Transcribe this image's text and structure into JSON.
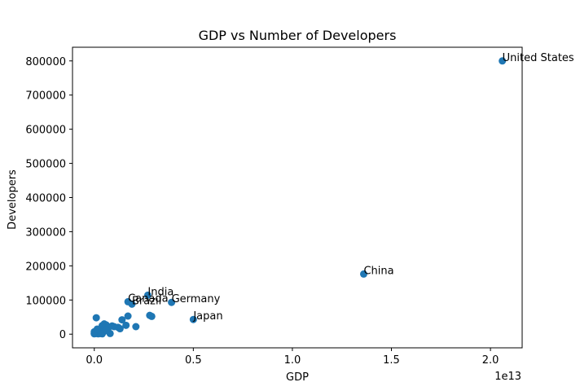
{
  "chart_data": {
    "type": "scatter",
    "title": "GDP vs Number of Developers",
    "xlabel": "GDP",
    "ylabel": "Developers",
    "x_offset_text": "1e13",
    "xlim": [
      -1100000000000.0,
      21600000000000.0
    ],
    "ylim": [
      -40000,
      840000
    ],
    "x_ticks": [
      0,
      5000000000000.0,
      10000000000000.0,
      15000000000000.0,
      20000000000000.0
    ],
    "x_tick_labels": [
      "0.0",
      "0.5",
      "1.0",
      "1.5",
      "2.0"
    ],
    "y_ticks": [
      0,
      100000,
      200000,
      300000,
      400000,
      500000,
      600000,
      700000,
      800000
    ],
    "y_tick_labels": [
      "0",
      "100000",
      "200000",
      "300000",
      "400000",
      "500000",
      "600000",
      "700000",
      "800000"
    ],
    "grid": false,
    "marker_color": "#1f77b4",
    "series": [
      {
        "points": [
          {
            "x": 20600000000000.0,
            "y": 800000,
            "label": "United States"
          },
          {
            "x": 13600000000000.0,
            "y": 176000,
            "label": "China"
          },
          {
            "x": 2700000000000.0,
            "y": 114000,
            "label": "India"
          },
          {
            "x": 1700000000000.0,
            "y": 95000,
            "label": "Canada"
          },
          {
            "x": 1900000000000.0,
            "y": 88000,
            "label": "Brazil"
          },
          {
            "x": 3900000000000.0,
            "y": 93000,
            "label": "Germany"
          },
          {
            "x": 5000000000000.0,
            "y": 43000,
            "label": "Japan"
          },
          {
            "x": 2800000000000.0,
            "y": 55000
          },
          {
            "x": 2900000000000.0,
            "y": 52000
          },
          {
            "x": 1700000000000.0,
            "y": 53000
          },
          {
            "x": 1400000000000.0,
            "y": 42000
          },
          {
            "x": 1600000000000.0,
            "y": 26000
          },
          {
            "x": 2100000000000.0,
            "y": 22000
          },
          {
            "x": 1200000000000.0,
            "y": 20000
          },
          {
            "x": 1000000000000.0,
            "y": 22000
          },
          {
            "x": 800000000000.0,
            "y": 2000
          },
          {
            "x": 100000000000.0,
            "y": 48000
          },
          {
            "x": 500000000000.0,
            "y": 30000
          },
          {
            "x": 600000000000.0,
            "y": 27000
          },
          {
            "x": 400000000000.0,
            "y": 25000
          },
          {
            "x": 900000000000.0,
            "y": 24000
          },
          {
            "x": 1300000000000.0,
            "y": 16000
          },
          {
            "x": 700000000000.0,
            "y": 18000
          },
          {
            "x": 300000000000.0,
            "y": 14000
          },
          {
            "x": 200000000000.0,
            "y": 12000
          },
          {
            "x": 400000000000.0,
            "y": 9000
          },
          {
            "x": 500000000000.0,
            "y": 8000
          },
          {
            "x": 300000000000.0,
            "y": 6000
          },
          {
            "x": 100000000000.0,
            "y": 5000
          },
          {
            "x": 200000000000.0,
            "y": 4000
          },
          {
            "x": 0.0,
            "y": 3000
          },
          {
            "x": 100000000000.0,
            "y": 2000
          },
          {
            "x": 0.0,
            "y": 1000
          },
          {
            "x": 200000000000.0,
            "y": 1000
          },
          {
            "x": 300000000000.0,
            "y": 2000
          },
          {
            "x": 400000000000.0,
            "y": 1000
          },
          {
            "x": 600000000000.0,
            "y": 12000
          },
          {
            "x": 100000000000.0,
            "y": 10000
          },
          {
            "x": 0.0,
            "y": 7000
          },
          {
            "x": 150000000000.0,
            "y": 15000
          }
        ]
      }
    ]
  }
}
